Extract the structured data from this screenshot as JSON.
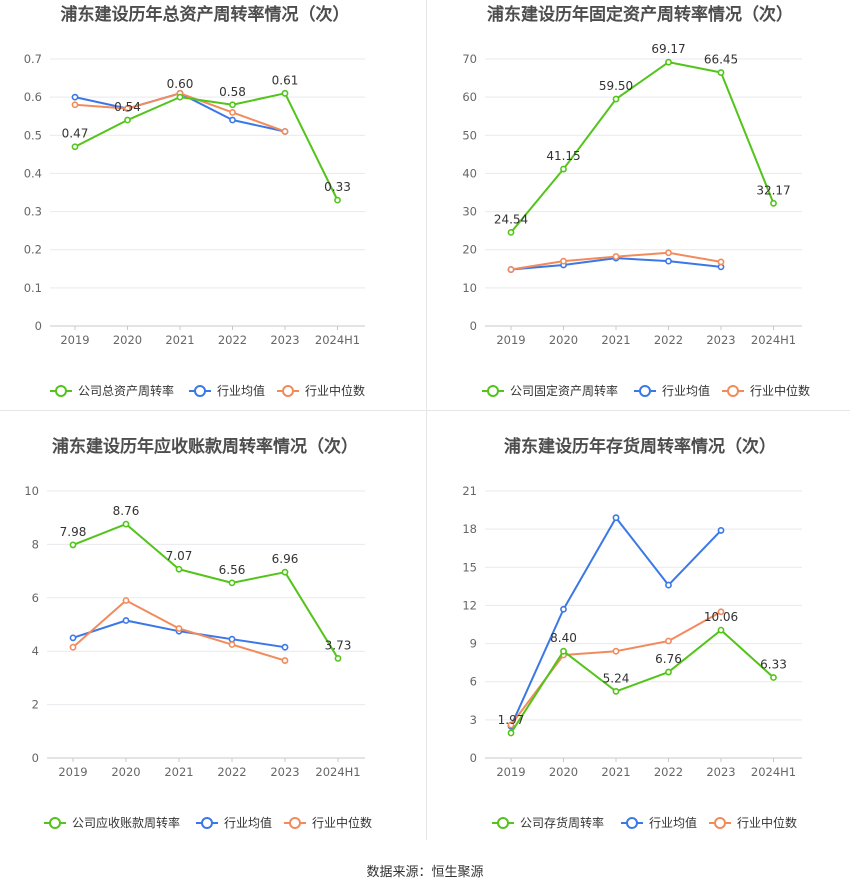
{
  "source": "数据来源：恒生聚源",
  "colors": {
    "company": "#52c41a",
    "industry_avg": "#3b78e7",
    "industry_median": "#f28b5c"
  },
  "chart_data": [
    {
      "type": "line",
      "title": "浦东建设历年总资产周转率情况（次）",
      "categories": [
        "2019",
        "2020",
        "2021",
        "2022",
        "2023",
        "2024H1"
      ],
      "ylim": [
        0,
        0.7
      ],
      "ystep": 0.1,
      "yticks": [
        "0",
        "0.1",
        "0.2",
        "0.3",
        "0.4",
        "0.5",
        "0.6",
        "0.7"
      ],
      "series": [
        {
          "name": "公司总资产周转率",
          "key": "company",
          "values": [
            0.47,
            0.54,
            0.6,
            0.58,
            0.61,
            0.33
          ],
          "labels": [
            "0.47",
            "0.54",
            "0.60",
            "0.58",
            "0.61",
            "0.33"
          ]
        },
        {
          "name": "行业均值",
          "key": "industry_avg",
          "values": [
            0.6,
            0.57,
            0.61,
            0.54,
            0.51,
            null
          ]
        },
        {
          "name": "行业中位数",
          "key": "industry_median",
          "values": [
            0.58,
            0.57,
            0.61,
            0.56,
            0.51,
            null
          ]
        }
      ]
    },
    {
      "type": "line",
      "title": "浦东建设历年固定资产周转率情况（次）",
      "categories": [
        "2019",
        "2020",
        "2021",
        "2022",
        "2023",
        "2024H1"
      ],
      "ylim": [
        0,
        70
      ],
      "ystep": 10,
      "yticks": [
        "0",
        "10",
        "20",
        "30",
        "40",
        "50",
        "60",
        "70"
      ],
      "series": [
        {
          "name": "公司固定资产周转率",
          "key": "company",
          "values": [
            24.54,
            41.15,
            59.5,
            69.17,
            66.45,
            32.17
          ],
          "labels": [
            "24.54",
            "41.15",
            "59.50",
            "69.17",
            "66.45",
            "32.17"
          ]
        },
        {
          "name": "行业均值",
          "key": "industry_avg",
          "values": [
            14.8,
            16.0,
            17.8,
            17.0,
            15.5,
            null
          ]
        },
        {
          "name": "行业中位数",
          "key": "industry_median",
          "values": [
            14.8,
            17.0,
            18.2,
            19.2,
            16.8,
            null
          ]
        }
      ]
    },
    {
      "type": "line",
      "title": "浦东建设历年应收账款周转率情况（次）",
      "categories": [
        "2019",
        "2020",
        "2021",
        "2022",
        "2023",
        "2024H1"
      ],
      "ylim": [
        0,
        10
      ],
      "ystep": 2,
      "yticks": [
        "0",
        "2",
        "4",
        "6",
        "8",
        "10"
      ],
      "series": [
        {
          "name": "公司应收账款周转率",
          "key": "company",
          "values": [
            7.98,
            8.76,
            7.07,
            6.56,
            6.96,
            3.73
          ],
          "labels": [
            "7.98",
            "8.76",
            "7.07",
            "6.56",
            "6.96",
            "3.73"
          ]
        },
        {
          "name": "行业均值",
          "key": "industry_avg",
          "values": [
            4.5,
            5.15,
            4.75,
            4.45,
            4.15,
            null
          ]
        },
        {
          "name": "行业中位数",
          "key": "industry_median",
          "values": [
            4.15,
            5.9,
            4.85,
            4.25,
            3.65,
            null
          ]
        }
      ]
    },
    {
      "type": "line",
      "title": "浦东建设历年存货周转率情况（次）",
      "categories": [
        "2019",
        "2020",
        "2021",
        "2022",
        "2023",
        "2024H1"
      ],
      "ylim": [
        0,
        21
      ],
      "ystep": 3,
      "yticks": [
        "0",
        "3",
        "6",
        "9",
        "12",
        "15",
        "18",
        "21"
      ],
      "series": [
        {
          "name": "公司存货周转率",
          "key": "company",
          "values": [
            1.97,
            8.4,
            5.24,
            6.76,
            10.06,
            6.33
          ],
          "labels": [
            "1.97",
            "8.40",
            "5.24",
            "6.76",
            "10.06",
            "6.33"
          ]
        },
        {
          "name": "行业均值",
          "key": "industry_avg",
          "values": [
            2.5,
            11.7,
            18.9,
            13.6,
            17.9,
            null
          ]
        },
        {
          "name": "行业中位数",
          "key": "industry_median",
          "values": [
            2.6,
            8.1,
            8.4,
            9.2,
            11.5,
            null
          ]
        }
      ]
    }
  ]
}
